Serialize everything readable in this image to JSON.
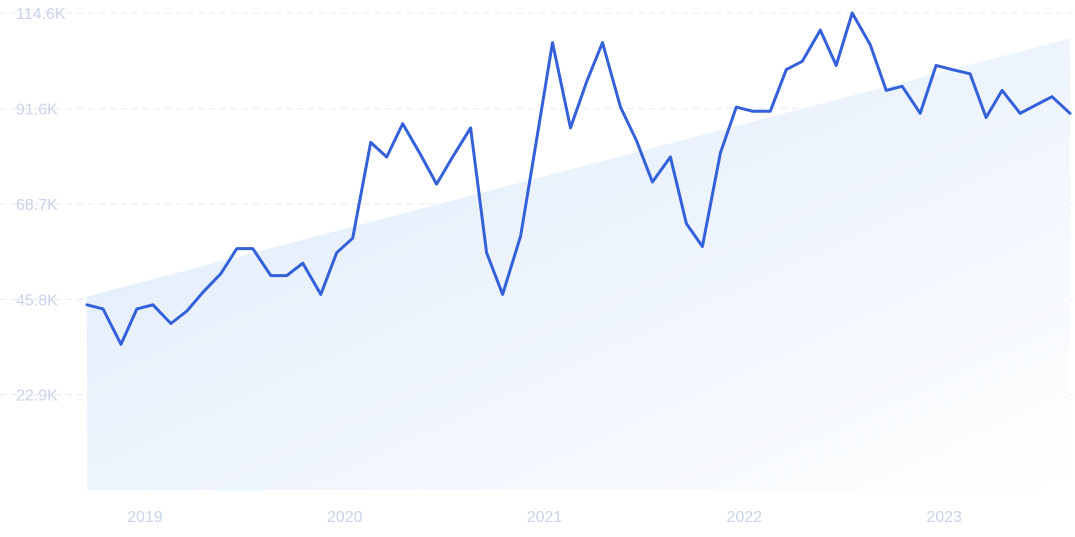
{
  "chart_data": {
    "type": "line",
    "title": "",
    "xlabel": "",
    "ylabel": "",
    "grid": true,
    "legend": "none",
    "y_ticks": [
      "22.9K",
      "45.8K",
      "68.7K",
      "91.6K",
      "114.6K"
    ],
    "y_tick_values": [
      22900,
      45800,
      68700,
      91600,
      114600
    ],
    "x_ticks": [
      "2019",
      "2020",
      "2021",
      "2022",
      "2023"
    ],
    "x_tick_values": [
      2019.0,
      2020.0,
      2021.0,
      2022.0,
      2023.0
    ],
    "ylim": [
      0,
      114600
    ],
    "xlim": [
      2018.75,
      2023.67
    ],
    "trend": {
      "start": [
        2018.75,
        46500
      ],
      "end": [
        2023.67,
        108500
      ]
    },
    "series": [
      {
        "color": "#3461d9",
        "x": [
          2018.75,
          2018.83,
          2018.92,
          2019.0,
          2019.08,
          2019.17,
          2019.25,
          2019.33,
          2019.42,
          2019.5,
          2019.58,
          2019.67,
          2019.75,
          2019.83,
          2019.92,
          2020.0,
          2020.08,
          2020.17,
          2020.25,
          2020.33,
          2020.42,
          2020.5,
          2020.58,
          2020.67,
          2020.75,
          2020.83,
          2020.92,
          2021.0,
          2021.08,
          2021.17,
          2021.25,
          2021.33,
          2021.42,
          2021.5,
          2021.58,
          2021.67,
          2021.75,
          2021.83,
          2021.92,
          2022.0,
          2022.08,
          2022.17,
          2022.25,
          2022.33,
          2022.42,
          2022.5,
          2022.58,
          2022.67,
          2022.75,
          2022.83,
          2022.92,
          2023.0,
          2023.08,
          2023.17,
          2023.25,
          2023.33,
          2023.42,
          2023.5,
          2023.58,
          2023.67
        ],
        "values": [
          44500,
          43500,
          35000,
          43500,
          44500,
          40000,
          43000,
          47500,
          52000,
          58000,
          58000,
          51500,
          51500,
          54500,
          47000,
          57000,
          60500,
          83500,
          80000,
          88000,
          80500,
          73500,
          80000,
          87000,
          57000,
          47000,
          61000,
          84000,
          107500,
          87000,
          98000,
          107500,
          92000,
          84000,
          74000,
          80000,
          64000,
          58500,
          81000,
          92000,
          91000,
          91000,
          101000,
          103000,
          110500,
          102000,
          114600,
          107000,
          96000,
          97000,
          90500,
          102000,
          101000,
          100000,
          89500,
          96000,
          90500,
          92500,
          94500,
          90500
        ]
      }
    ]
  }
}
